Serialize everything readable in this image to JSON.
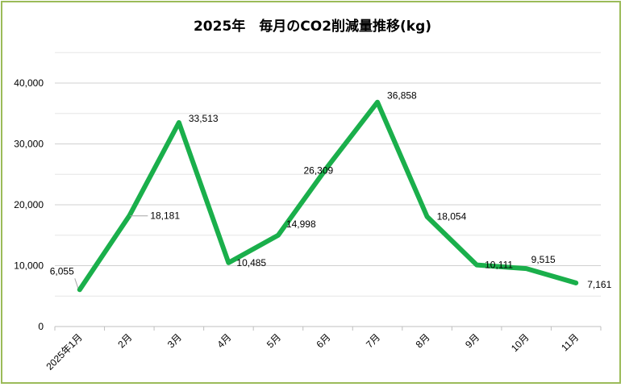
{
  "chart_data": {
    "type": "line",
    "title": "2025年　毎月のCO2削減量推移(kg)",
    "categories": [
      "2025年1月",
      "2月",
      "3月",
      "4月",
      "5月",
      "6月",
      "7月",
      "8月",
      "9月",
      "10月",
      "11月"
    ],
    "series": [
      {
        "values": [
          6055,
          18181,
          33513,
          10485,
          14998,
          26309,
          36858,
          18054,
          10111,
          9515,
          7161
        ]
      }
    ],
    "data_labels": [
      "6,055",
      "18,181",
      "33,513",
      "10,485",
      "14,998",
      "26,309",
      "36,858",
      "18,054",
      "10,111",
      "9,515",
      "7,161"
    ],
    "ylim": [
      0,
      40000
    ],
    "yticks": [
      0,
      10000,
      20000,
      30000,
      40000
    ],
    "ytick_labels": [
      "0",
      "10,000",
      "20,000",
      "30,000",
      "40,000"
    ],
    "grid": true,
    "line_color": "#1aaf4b",
    "border_color": "#9bbb59"
  }
}
